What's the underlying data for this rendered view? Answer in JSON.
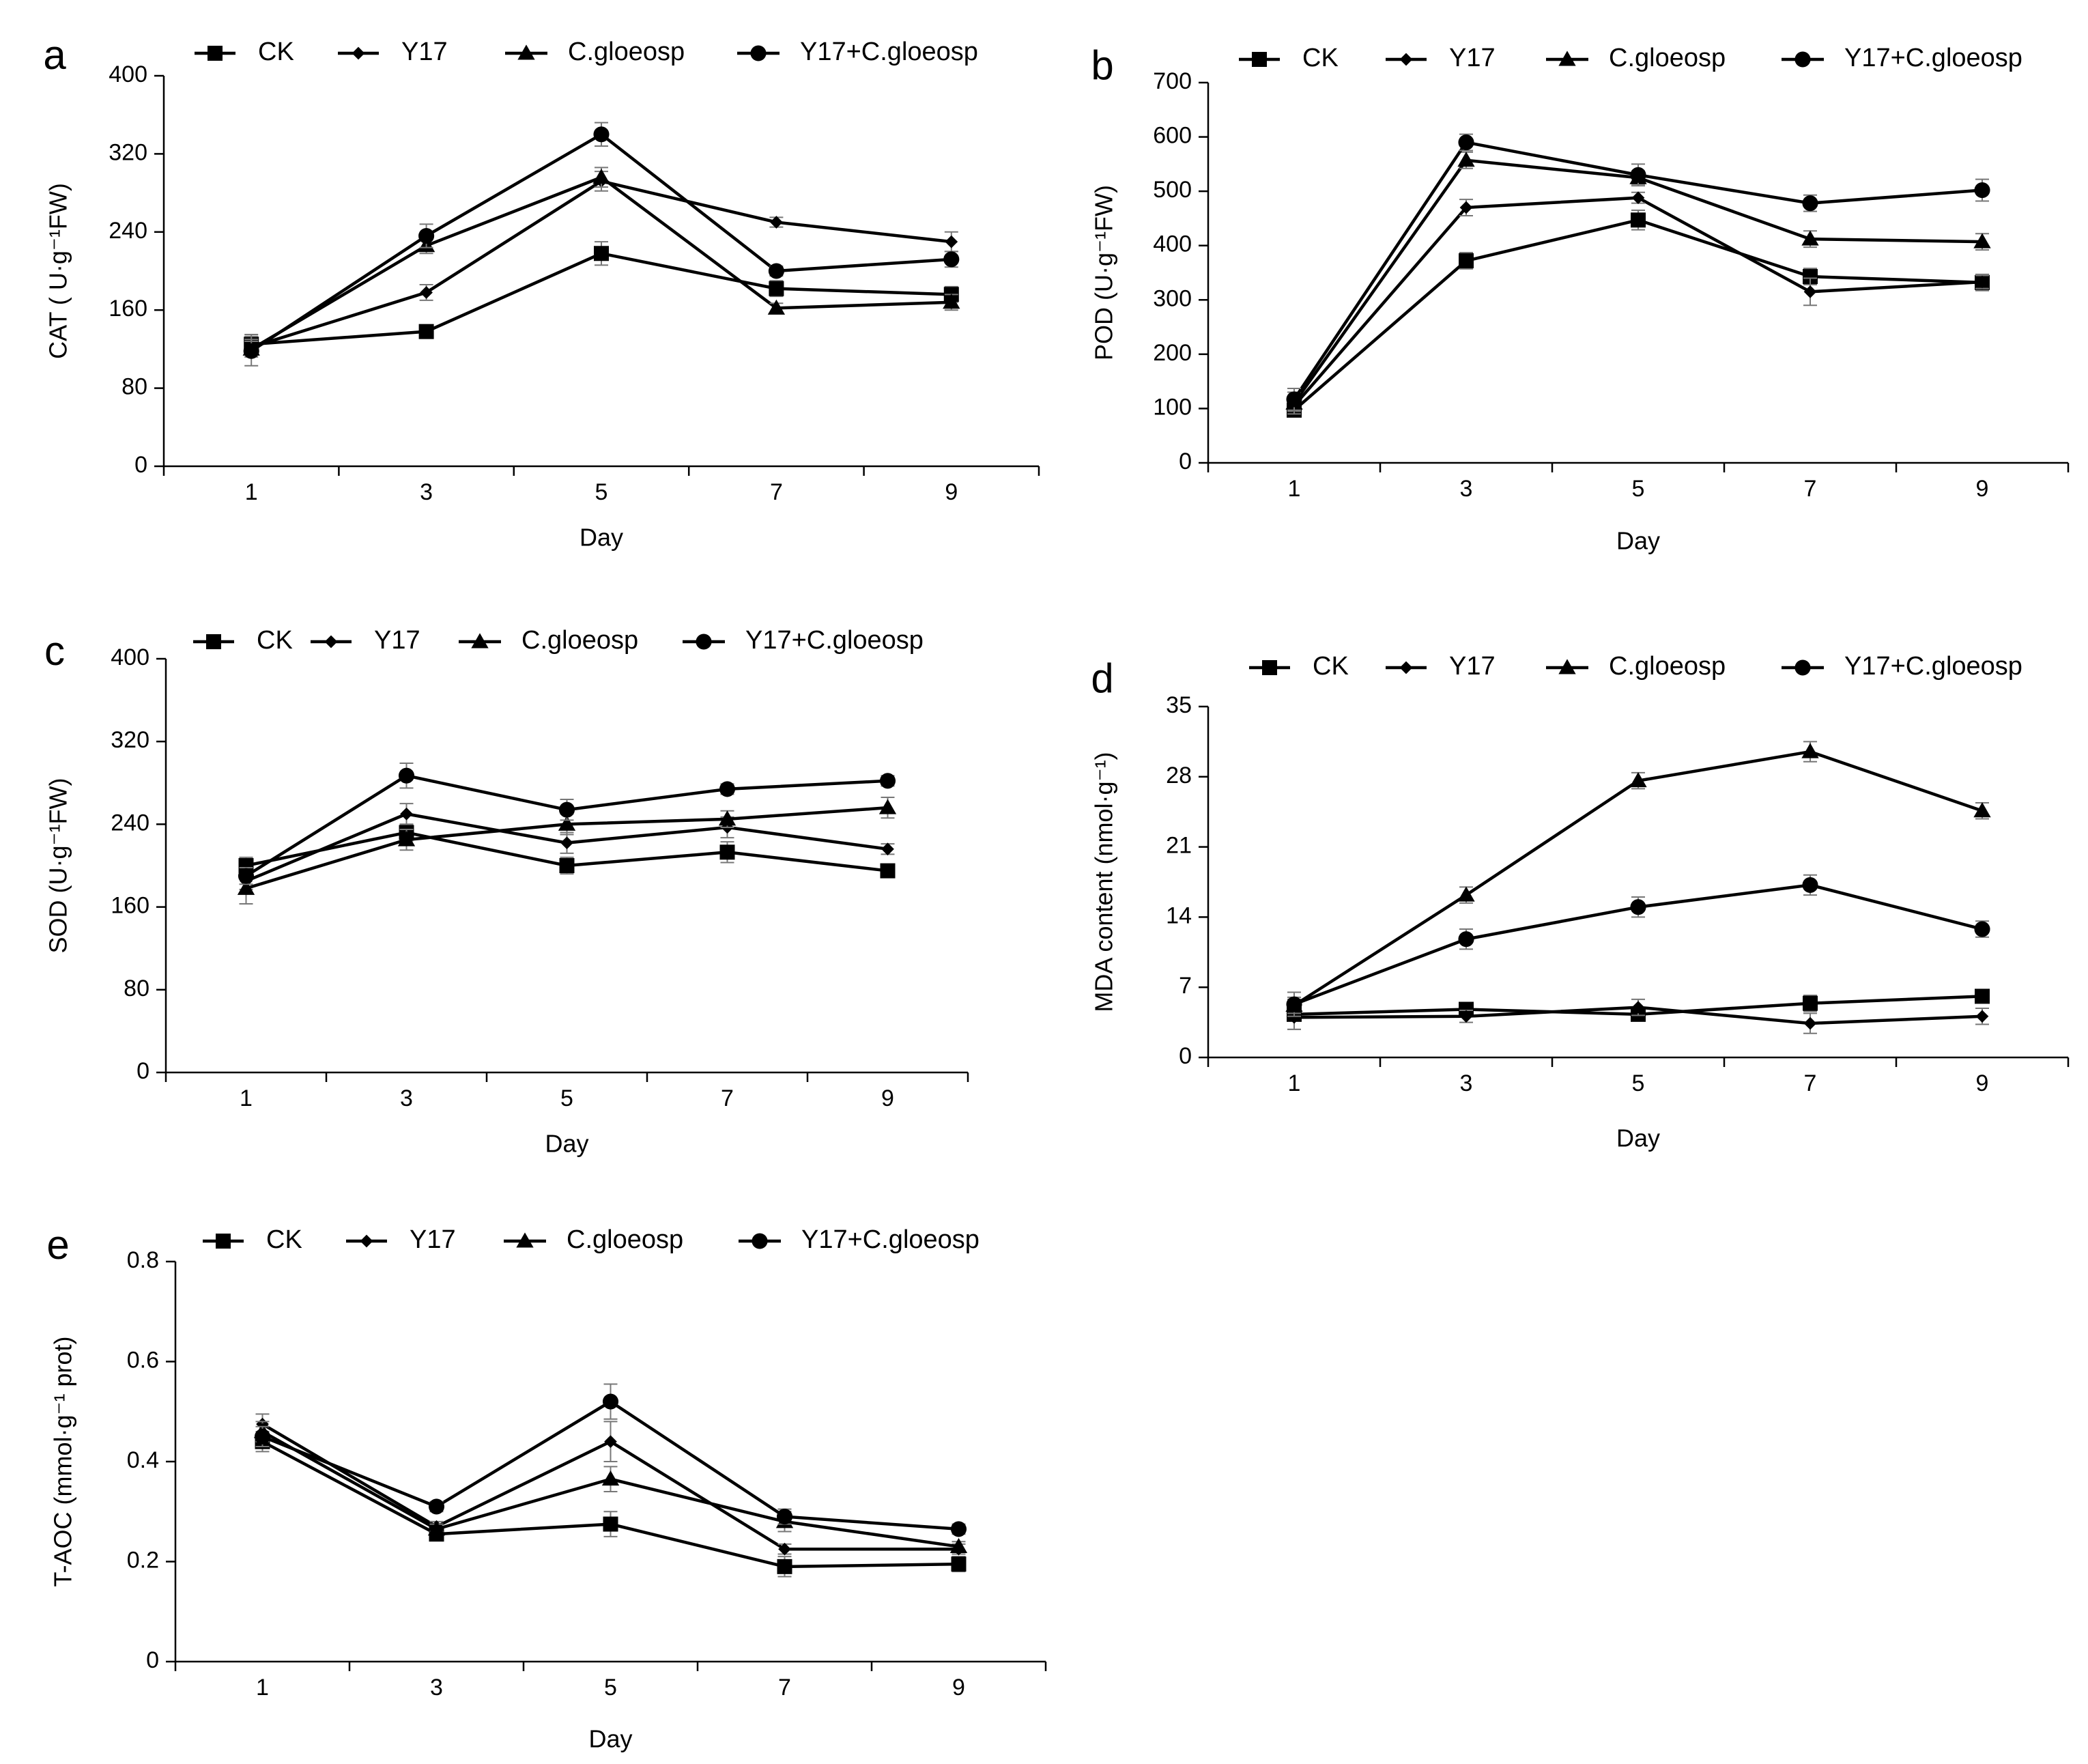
{
  "chart_data": [
    {
      "type": "line",
      "panel": "a",
      "x": [
        1,
        3,
        5,
        7,
        9
      ],
      "xlabel": "Day",
      "ylabel": "CAT ( U·g⁻¹FW)",
      "ylim": [
        0,
        400
      ],
      "yticks": [
        0,
        80,
        160,
        240,
        320,
        400
      ],
      "series": [
        {
          "name": "CK",
          "marker": "square",
          "values": [
            125,
            138,
            218,
            182,
            176
          ],
          "errors": [
            10,
            5,
            12,
            8,
            8
          ]
        },
        {
          "name": "Y17",
          "marker": "diamond",
          "values": [
            122,
            178,
            292,
            250,
            230
          ],
          "errors": [
            8,
            8,
            10,
            5,
            10
          ]
        },
        {
          "name": "C.gloeosp",
          "marker": "triangle",
          "values": [
            120,
            226,
            296,
            162,
            168
          ],
          "errors": [
            8,
            8,
            10,
            5,
            8
          ]
        },
        {
          "name": "Y17+C.gloeosp",
          "marker": "circle",
          "values": [
            118,
            236,
            340,
            200,
            212
          ],
          "errors": [
            15,
            12,
            12,
            5,
            8
          ]
        }
      ]
    },
    {
      "type": "line",
      "panel": "b",
      "x": [
        1,
        3,
        5,
        7,
        9
      ],
      "xlabel": "Day",
      "ylabel": "POD (U·g⁻¹FW)",
      "ylim": [
        0,
        700
      ],
      "yticks": [
        0,
        100,
        200,
        300,
        400,
        500,
        600,
        700
      ],
      "series": [
        {
          "name": "CK",
          "marker": "square",
          "values": [
            97,
            372,
            447,
            343,
            332
          ],
          "errors": [
            10,
            15,
            18,
            15,
            15
          ]
        },
        {
          "name": "Y17",
          "marker": "diamond",
          "values": [
            105,
            470,
            488,
            315,
            333
          ],
          "errors": [
            10,
            15,
            10,
            25,
            12
          ]
        },
        {
          "name": "C.gloeosp",
          "marker": "triangle",
          "values": [
            110,
            557,
            525,
            412,
            407
          ],
          "errors": [
            20,
            15,
            12,
            15,
            15
          ]
        },
        {
          "name": "Y17+C.gloeosp",
          "marker": "circle",
          "values": [
            117,
            590,
            530,
            478,
            502
          ],
          "errors": [
            20,
            15,
            20,
            15,
            20
          ]
        }
      ]
    },
    {
      "type": "line",
      "panel": "c",
      "x": [
        1,
        3,
        5,
        7,
        9
      ],
      "xlabel": "Day",
      "ylabel": "SOD (U·g⁻¹FW)",
      "ylim": [
        0,
        400
      ],
      "yticks": [
        0,
        80,
        160,
        240,
        320,
        400
      ],
      "series": [
        {
          "name": "CK",
          "marker": "square",
          "values": [
            200,
            232,
            200,
            213,
            195
          ],
          "errors": [
            8,
            8,
            8,
            10,
            5
          ]
        },
        {
          "name": "Y17",
          "marker": "diamond",
          "values": [
            185,
            250,
            222,
            237,
            216
          ],
          "errors": [
            8,
            10,
            10,
            10,
            5
          ]
        },
        {
          "name": "C.gloeosp",
          "marker": "triangle",
          "values": [
            178,
            225,
            240,
            245,
            256
          ],
          "errors": [
            15,
            10,
            10,
            8,
            10
          ]
        },
        {
          "name": "Y17+C.gloeosp",
          "marker": "circle",
          "values": [
            190,
            287,
            254,
            274,
            282
          ],
          "errors": [
            8,
            12,
            10,
            5,
            5
          ]
        }
      ]
    },
    {
      "type": "line",
      "panel": "d",
      "x": [
        1,
        3,
        5,
        7,
        9
      ],
      "xlabel": "Day",
      "ylabel": "MDA content (nmol·g⁻¹)",
      "ylim": [
        0,
        35
      ],
      "yticks": [
        0,
        7,
        14,
        21,
        28,
        35
      ],
      "series": [
        {
          "name": "CK",
          "marker": "square",
          "values": [
            4.3,
            4.8,
            4.3,
            5.4,
            6.1
          ],
          "errors": [
            1.5,
            0.5,
            0.5,
            0.8,
            0.5
          ]
        },
        {
          "name": "Y17",
          "marker": "diamond",
          "values": [
            4.0,
            4.1,
            5.0,
            3.4,
            4.1
          ],
          "errors": [
            1.2,
            0.6,
            0.8,
            1.0,
            0.8
          ]
        },
        {
          "name": "C.gloeosp",
          "marker": "triangle",
          "values": [
            5.2,
            16.2,
            27.6,
            30.5,
            24.6
          ],
          "errors": [
            0.8,
            0.8,
            0.8,
            1.0,
            0.8
          ]
        },
        {
          "name": "Y17+C.gloeosp",
          "marker": "circle",
          "values": [
            5.3,
            11.8,
            15.0,
            17.2,
            12.8
          ],
          "errors": [
            1.2,
            1.0,
            1.0,
            1.0,
            0.8
          ]
        }
      ]
    },
    {
      "type": "line",
      "panel": "e",
      "x": [
        1,
        3,
        5,
        7,
        9
      ],
      "xlabel": "Day",
      "ylabel": "T-AOC (mmol·g⁻¹ prot)",
      "ylim": [
        0,
        0.8
      ],
      "yticks": [
        0,
        0.2,
        0.4,
        0.6,
        0.8
      ],
      "series": [
        {
          "name": "CK",
          "marker": "square",
          "values": [
            0.44,
            0.255,
            0.275,
            0.19,
            0.195
          ],
          "errors": [
            0.02,
            0.01,
            0.025,
            0.02,
            0.015
          ]
        },
        {
          "name": "Y17",
          "marker": "diamond",
          "values": [
            0.475,
            0.27,
            0.44,
            0.225,
            0.225
          ],
          "errors": [
            0.02,
            0.01,
            0.04,
            0.01,
            0.01
          ]
        },
        {
          "name": "C.gloeosp",
          "marker": "triangle",
          "values": [
            0.46,
            0.265,
            0.365,
            0.28,
            0.23
          ],
          "errors": [
            0.02,
            0.01,
            0.025,
            0.02,
            0.01
          ]
        },
        {
          "name": "Y17+C.gloeosp",
          "marker": "circle",
          "values": [
            0.45,
            0.31,
            0.52,
            0.29,
            0.265
          ],
          "errors": [
            0.02,
            0.01,
            0.035,
            0.015,
            0.01
          ]
        }
      ]
    }
  ]
}
